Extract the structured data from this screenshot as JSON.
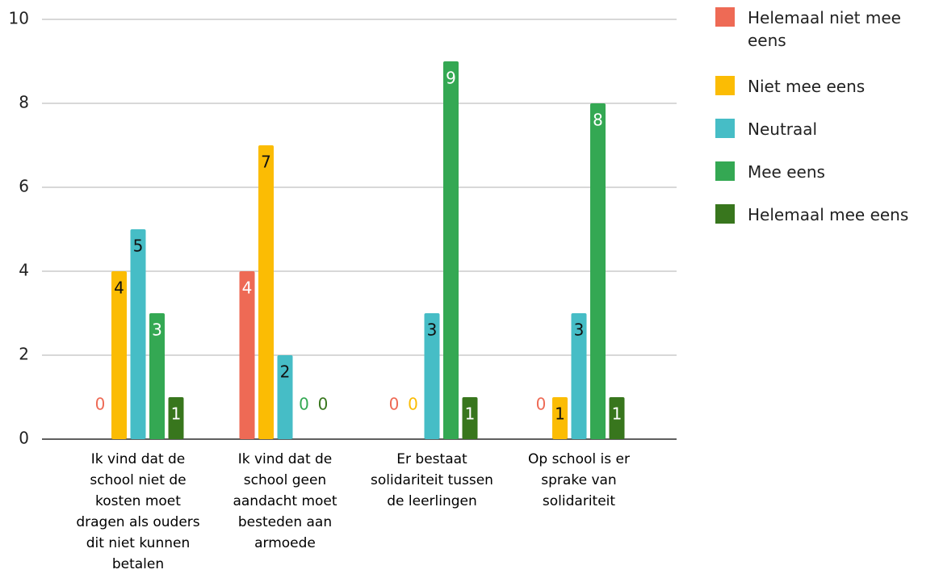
{
  "chart_data": {
    "type": "bar",
    "categories": [
      "Ik vind dat de school niet de kosten moet dragen als ouders dit niet kunnen betalen",
      "Ik vind dat de school geen aandacht moet besteden aan armoede",
      "Er bestaat solidariteit tussen de leerlingen",
      "Op school is er sprake van solidariteit"
    ],
    "series": [
      {
        "name": "Helemaal niet mee eens",
        "color": "#ee6a55",
        "values": [
          0,
          4,
          0,
          0
        ]
      },
      {
        "name": "Niet mee eens",
        "color": "#fbbc04",
        "values": [
          4,
          7,
          0,
          1
        ]
      },
      {
        "name": "Neutraal",
        "color": "#46bdc6",
        "values": [
          5,
          2,
          3,
          3
        ]
      },
      {
        "name": "Mee eens",
        "color": "#34a853",
        "values": [
          3,
          0,
          9,
          8
        ]
      },
      {
        "name": "Helemaal mee eens",
        "color": "#38761d",
        "values": [
          1,
          0,
          1,
          1
        ]
      }
    ],
    "ylim": [
      0,
      10
    ],
    "yticks": [
      0,
      2,
      4,
      6,
      8,
      10
    ],
    "grid": true,
    "legend": "right"
  }
}
